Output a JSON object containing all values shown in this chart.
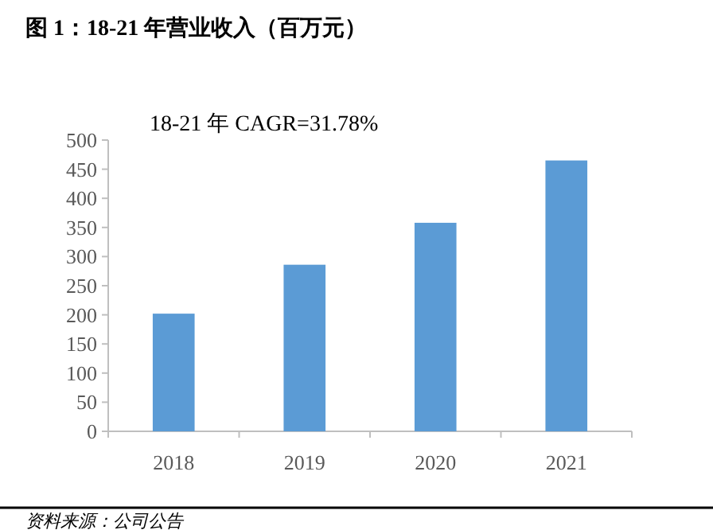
{
  "chart_data": {
    "type": "bar",
    "title": "图 1：18-21 年营业收入（百万元）",
    "categories": [
      "2018",
      "2019",
      "2020",
      "2021"
    ],
    "values": [
      202,
      286,
      358,
      465
    ],
    "color": "#5b9bd5",
    "ylim": [
      0,
      500
    ],
    "yticks": [
      0,
      50,
      100,
      150,
      200,
      250,
      300,
      350,
      400,
      450,
      500
    ],
    "grid": false,
    "annotations": [
      "18-21 年 CAGR=31.78%",
      "资料来源：公司公告"
    ]
  }
}
